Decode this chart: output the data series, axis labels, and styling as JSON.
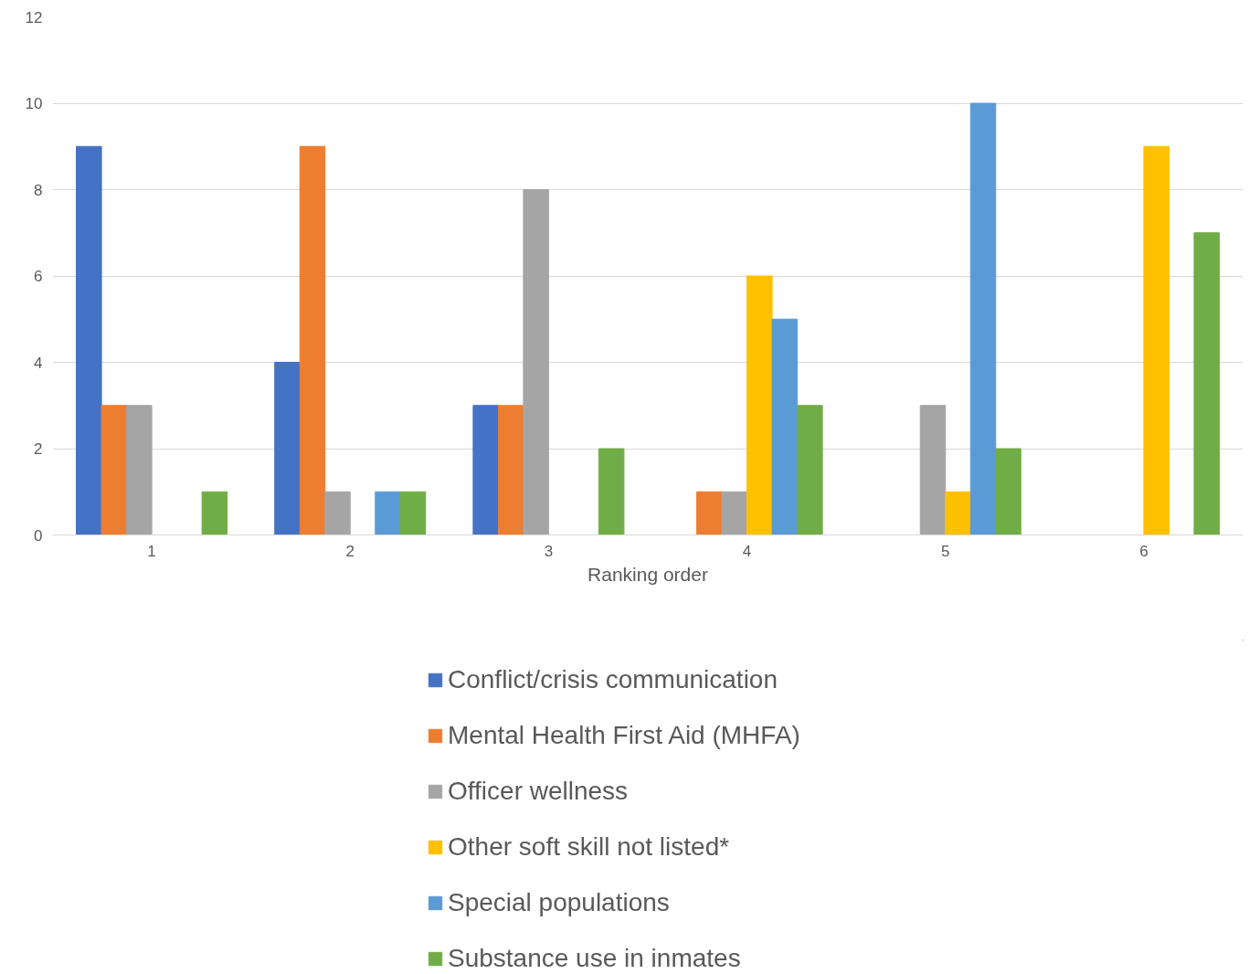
{
  "chart_data": {
    "type": "bar",
    "xlabel": "Ranking order",
    "categories": [
      "1",
      "2",
      "3",
      "4",
      "5",
      "6"
    ],
    "series": [
      {
        "name": "Conflict/crisis communication",
        "color": "#4472c4",
        "values": [
          9,
          4,
          3,
          0,
          0,
          0
        ]
      },
      {
        "name": "Mental Health First Aid (MHFA)",
        "color": "#ed7d31",
        "values": [
          3,
          9,
          3,
          1,
          0,
          0
        ]
      },
      {
        "name": "Officer wellness",
        "color": "#a5a5a5",
        "values": [
          3,
          1,
          8,
          1,
          3,
          0
        ]
      },
      {
        "name": "Other soft skill not listed*",
        "color": "#ffc000",
        "values": [
          0,
          0,
          0,
          6,
          1,
          9
        ]
      },
      {
        "name": "Special populations",
        "color": "#5b9bd5",
        "values": [
          0,
          1,
          0,
          5,
          10,
          0
        ]
      },
      {
        "name": "Substance use in inmates",
        "color": "#70ad47",
        "values": [
          1,
          1,
          2,
          3,
          2,
          7
        ]
      }
    ],
    "ylim": [
      0,
      12
    ],
    "yticks": [
      0,
      2,
      4,
      6,
      8,
      10,
      12
    ],
    "grid": "y",
    "legend": "bottom"
  }
}
